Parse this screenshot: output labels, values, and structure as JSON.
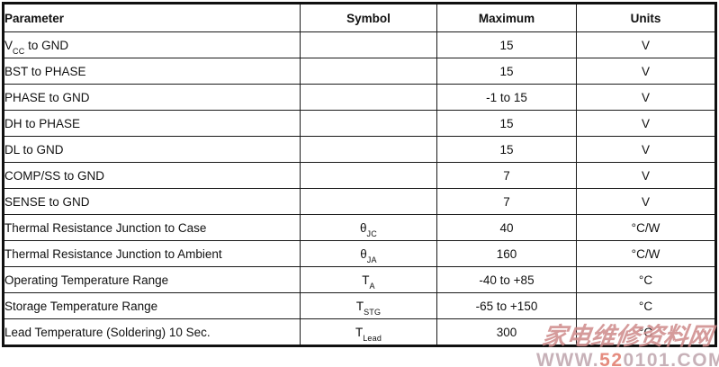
{
  "watermark": {
    "line1": "家电维修资料网",
    "url_pre": "WWW.",
    "url_mid": "52",
    "url_post": "0101.COM"
  },
  "table": {
    "headers": {
      "parameter": "Parameter",
      "symbol": "Symbol",
      "maximum": "Maximum",
      "units": "Units"
    },
    "rows": [
      {
        "p1": "V",
        "psub": "CC",
        "p2": " to GND",
        "sym": "",
        "ssub": "",
        "max": "15",
        "units": "V"
      },
      {
        "p1": "BST to PHASE",
        "psub": "",
        "p2": "",
        "sym": "",
        "ssub": "",
        "max": "15",
        "units": "V"
      },
      {
        "p1": "PHASE to GND",
        "psub": "",
        "p2": "",
        "sym": "",
        "ssub": "",
        "max": "-1 to 15",
        "units": "V"
      },
      {
        "p1": "DH to PHASE",
        "psub": "",
        "p2": "",
        "sym": "",
        "ssub": "",
        "max": "15",
        "units": "V"
      },
      {
        "p1": "DL to GND",
        "psub": "",
        "p2": "",
        "sym": "",
        "ssub": "",
        "max": "15",
        "units": "V"
      },
      {
        "p1": "COMP/SS to GND",
        "psub": "",
        "p2": "",
        "sym": "",
        "ssub": "",
        "max": "7",
        "units": "V"
      },
      {
        "p1": "SENSE to GND",
        "psub": "",
        "p2": "",
        "sym": "",
        "ssub": "",
        "max": "7",
        "units": "V"
      },
      {
        "p1": "Thermal Resistance Junction to Case",
        "psub": "",
        "p2": "",
        "sym": "θ",
        "ssub": "JC",
        "max": "40",
        "units": "°C/W"
      },
      {
        "p1": "Thermal Resistance Junction to Ambient",
        "psub": "",
        "p2": "",
        "sym": "θ",
        "ssub": "JA",
        "max": "160",
        "units": "°C/W"
      },
      {
        "p1": "Operating Temperature Range",
        "psub": "",
        "p2": "",
        "sym": "T",
        "ssub": "A",
        "max": "-40 to +85",
        "units": "°C"
      },
      {
        "p1": "Storage Temperature Range",
        "psub": "",
        "p2": "",
        "sym": "T",
        "ssub": "STG",
        "max": "-65 to +150",
        "units": "°C"
      },
      {
        "p1": "Lead Temperature (Soldering) 10 Sec.",
        "psub": "",
        "p2": "",
        "sym": "T",
        "ssub": "Lead",
        "max": "300",
        "units": "°C"
      }
    ]
  }
}
